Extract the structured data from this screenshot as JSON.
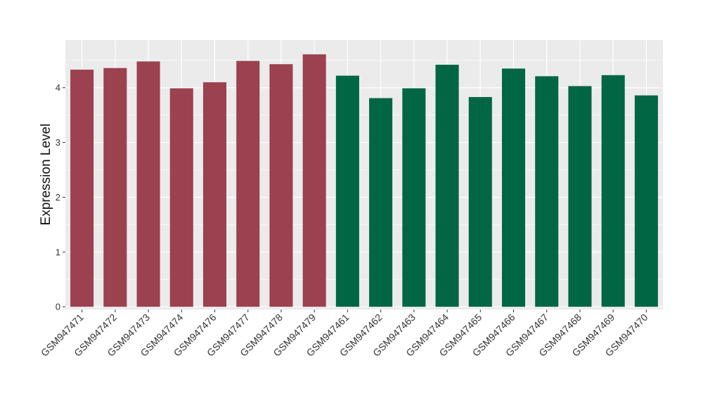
{
  "chart_data": {
    "type": "bar",
    "title": "",
    "xlabel": "",
    "ylabel": "Expression Level",
    "ylim": [
      -0.05,
      4.87
    ],
    "yticks": [
      0,
      1,
      2,
      3,
      4
    ],
    "grid": true,
    "legend": "none",
    "background": "#ebebeb",
    "gridline_color": "#ffffff",
    "group_colors": {
      "group_a": "#9b4150",
      "group_b": "#006643"
    },
    "categories": [
      "GSM947471",
      "GSM947472",
      "GSM947473",
      "GSM947474",
      "GSM947476",
      "GSM947477",
      "GSM947478",
      "GSM947479",
      "GSM947461",
      "GSM947462",
      "GSM947463",
      "GSM947464",
      "GSM947465",
      "GSM947466",
      "GSM947467",
      "GSM947468",
      "GSM947469",
      "GSM947470"
    ],
    "values": [
      4.33,
      4.36,
      4.48,
      3.99,
      4.1,
      4.49,
      4.43,
      4.61,
      4.22,
      3.81,
      3.99,
      4.42,
      3.83,
      4.35,
      4.21,
      4.03,
      4.23,
      3.86
    ],
    "groups": [
      "group_a",
      "group_a",
      "group_a",
      "group_a",
      "group_a",
      "group_a",
      "group_a",
      "group_a",
      "group_b",
      "group_b",
      "group_b",
      "group_b",
      "group_b",
      "group_b",
      "group_b",
      "group_b",
      "group_b",
      "group_b"
    ]
  }
}
